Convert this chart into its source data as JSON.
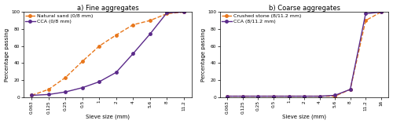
{
  "fine": {
    "title": "a) Fine aggregates",
    "xlabel": "Sieve size (mm)",
    "ylabel": "Percentage passing",
    "sieve_sizes": [
      "0.063",
      "0.125",
      "0.25",
      "0.5",
      "1",
      "2",
      "4",
      "5.6",
      "8",
      "11.2"
    ],
    "natural_sand": [
      2,
      9,
      23,
      42,
      60,
      73,
      85,
      90,
      98,
      100
    ],
    "cca_fine": [
      2,
      3,
      6,
      11,
      18,
      29,
      51,
      74,
      99,
      100
    ],
    "natural_sand_label": "Natural sand (0/8 mm)",
    "cca_label": "CCA (0/8 mm)",
    "natural_sand_color": "#E8761A",
    "cca_color": "#5B2A8A",
    "ylim": [
      0,
      100
    ],
    "yticks": [
      0,
      20,
      40,
      60,
      80,
      100
    ]
  },
  "coarse": {
    "title": "b) Coarse aggregates",
    "xlabel": "Sieve size (mm)",
    "ylabel": "Percentage passing",
    "sieve_sizes": [
      "0.063",
      "0.125",
      "0.25",
      "0.5",
      "1",
      "2",
      "4",
      "5.6",
      "8",
      "11.2",
      "16"
    ],
    "crushed_stone": [
      1,
      1,
      1,
      1,
      1,
      1,
      1,
      1,
      9,
      90,
      100
    ],
    "cca_coarse": [
      1,
      1,
      1,
      1,
      1,
      1,
      1,
      2,
      9,
      98,
      100
    ],
    "crushed_stone_label": "Crushed stone (8/11.2 mm)",
    "cca_label": "CCA (8/11.2 mm)",
    "crushed_stone_color": "#E8761A",
    "cca_color": "#5B2A8A",
    "ylim": [
      0,
      100
    ],
    "yticks": [
      0,
      20,
      40,
      60,
      80,
      100
    ]
  },
  "bg_color": "#ffffff",
  "marker": "o",
  "markersize": 2.5,
  "linewidth": 1.0,
  "title_fontsize": 6.0,
  "axis_label_fontsize": 5.0,
  "tick_fontsize": 4.2,
  "legend_fontsize": 4.5
}
